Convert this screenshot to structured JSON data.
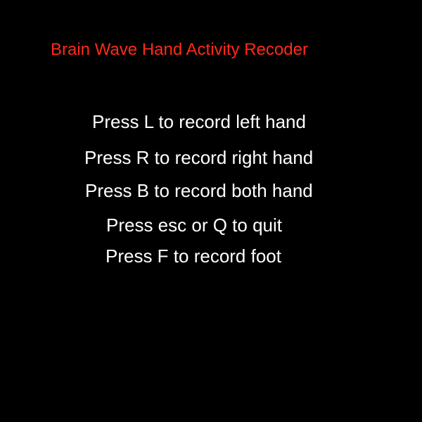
{
  "window": {
    "title": "Brain Wave Hand Activity Recoder"
  },
  "colors": {
    "background": "#000000",
    "title": "#ff2a1a",
    "instruction_text": "#ffffff"
  },
  "instructions": [
    "Press L to record left hand",
    "Press R to record right hand",
    "Press B to record both hand",
    "Press esc or Q to quit",
    "Press F to record foot"
  ]
}
